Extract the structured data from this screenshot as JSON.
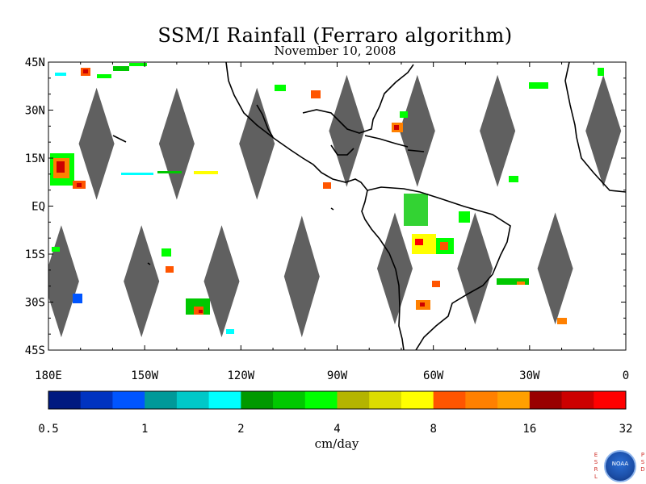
{
  "title": "SSM/I Rainfall (Ferraro algorithm)",
  "subtitle": "November 10, 2008",
  "lat_labels": [
    "45N",
    "30N",
    "15N",
    "EQ",
    "15S",
    "30S",
    "45S"
  ],
  "lon_labels": [
    "180E",
    "150W",
    "120W",
    "90W",
    "60W",
    "30W",
    "0"
  ],
  "colorbar": {
    "ticks": [
      "0.5",
      "1",
      "2",
      "4",
      "8",
      "16",
      "32"
    ],
    "units": "cm/day",
    "colors": [
      "#001a80",
      "#0033c0",
      "#0055ff",
      "#009999",
      "#00c8c8",
      "#00ffff",
      "#009900",
      "#00c800",
      "#00ff00",
      "#b4b400",
      "#dcdc00",
      "#ffff00",
      "#ff5500",
      "#ff8000",
      "#ffa000",
      "#990000",
      "#cc0000",
      "#ff0000"
    ]
  },
  "map": {
    "bounds": {
      "lon_min": -180,
      "lon_max": 0,
      "lat_min": -45,
      "lat_max": 45
    },
    "no_data_color": "#606060",
    "swath_gaps": [
      {
        "lon": -165,
        "lat_top": 37,
        "lat_bottom": 2
      },
      {
        "lon": -140,
        "lat_top": 37,
        "lat_bottom": 2
      },
      {
        "lon": -115,
        "lat_top": 37,
        "lat_bottom": 2
      },
      {
        "lon": -87,
        "lat_top": 41,
        "lat_bottom": 6
      },
      {
        "lon": -65,
        "lat_top": 41,
        "lat_bottom": 6
      },
      {
        "lon": -40,
        "lat_top": 41,
        "lat_bottom": 6
      },
      {
        "lon": -7,
        "lat_top": 41,
        "lat_bottom": 6
      },
      {
        "lon": -176,
        "lat_top": -6,
        "lat_bottom": -41
      },
      {
        "lon": -151,
        "lat_top": -6,
        "lat_bottom": -41
      },
      {
        "lon": -126,
        "lat_top": -6,
        "lat_bottom": -41
      },
      {
        "lon": -101,
        "lat_top": -3,
        "lat_bottom": -41
      },
      {
        "lon": -72,
        "lat_top": -2,
        "lat_bottom": -37
      },
      {
        "lon": -47,
        "lat_top": -2,
        "lat_bottom": -37
      },
      {
        "lon": -22,
        "lat_top": -2,
        "lat_bottom": -37
      }
    ]
  },
  "branding": {
    "left_letters": [
      "E",
      "S",
      "R",
      "L"
    ],
    "right_letters": [
      "P",
      "S",
      "D"
    ],
    "badge": "NOAA"
  }
}
